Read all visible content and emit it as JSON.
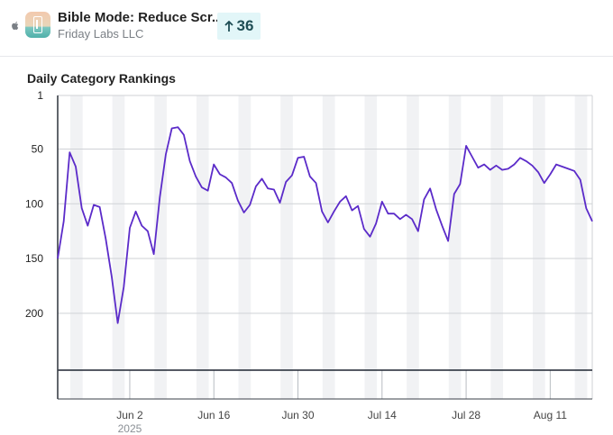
{
  "header": {
    "platform_icon": "apple-icon",
    "app_title": "Bible Mode: Reduce Scr...",
    "developer": "Friday Labs LLC",
    "rank_change": "36",
    "rank_change_icon": "arrow-up-icon"
  },
  "chart_data": {
    "type": "line",
    "title": "Daily Category Rankings",
    "xlabel": "",
    "ylabel": "",
    "y_inverted": true,
    "ylim": [
      1,
      252
    ],
    "yticks": [
      "1",
      "50",
      "100",
      "150",
      "200"
    ],
    "ytick_values": [
      1,
      50,
      100,
      150,
      200
    ],
    "x_start_date": "2025-05-21",
    "xticks": [
      {
        "label": "Jun 2",
        "index": 12,
        "sublabel": "2025"
      },
      {
        "label": "Jun 16",
        "index": 26
      },
      {
        "label": "Jun 30",
        "index": 40
      },
      {
        "label": "Jul 14",
        "index": 54
      },
      {
        "label": "Jul 28",
        "index": 68
      },
      {
        "label": "Aug 11",
        "index": 82
      }
    ],
    "weekend_bands": true,
    "grid": true,
    "line_color": "#5b2bc9",
    "series": [
      {
        "name": "Rank",
        "values": [
          150,
          116,
          53,
          66,
          104,
          120,
          101,
          103,
          132,
          167,
          209,
          176,
          122,
          107,
          120,
          125,
          146,
          94,
          55,
          31,
          30,
          37,
          61,
          75,
          85,
          88,
          64,
          73,
          76,
          81,
          97,
          108,
          101,
          84,
          77,
          86,
          87,
          99,
          80,
          74,
          58,
          57,
          75,
          81,
          107,
          117,
          107,
          98,
          93,
          106,
          102,
          123,
          130,
          118,
          98,
          109,
          109,
          114,
          110,
          114,
          125,
          96,
          86,
          105,
          120,
          134,
          91,
          82,
          47,
          57,
          67,
          64,
          69,
          65,
          69,
          68,
          64,
          58,
          61,
          65,
          71,
          81,
          73,
          64,
          66,
          68,
          70,
          78,
          104,
          116
        ]
      }
    ]
  }
}
